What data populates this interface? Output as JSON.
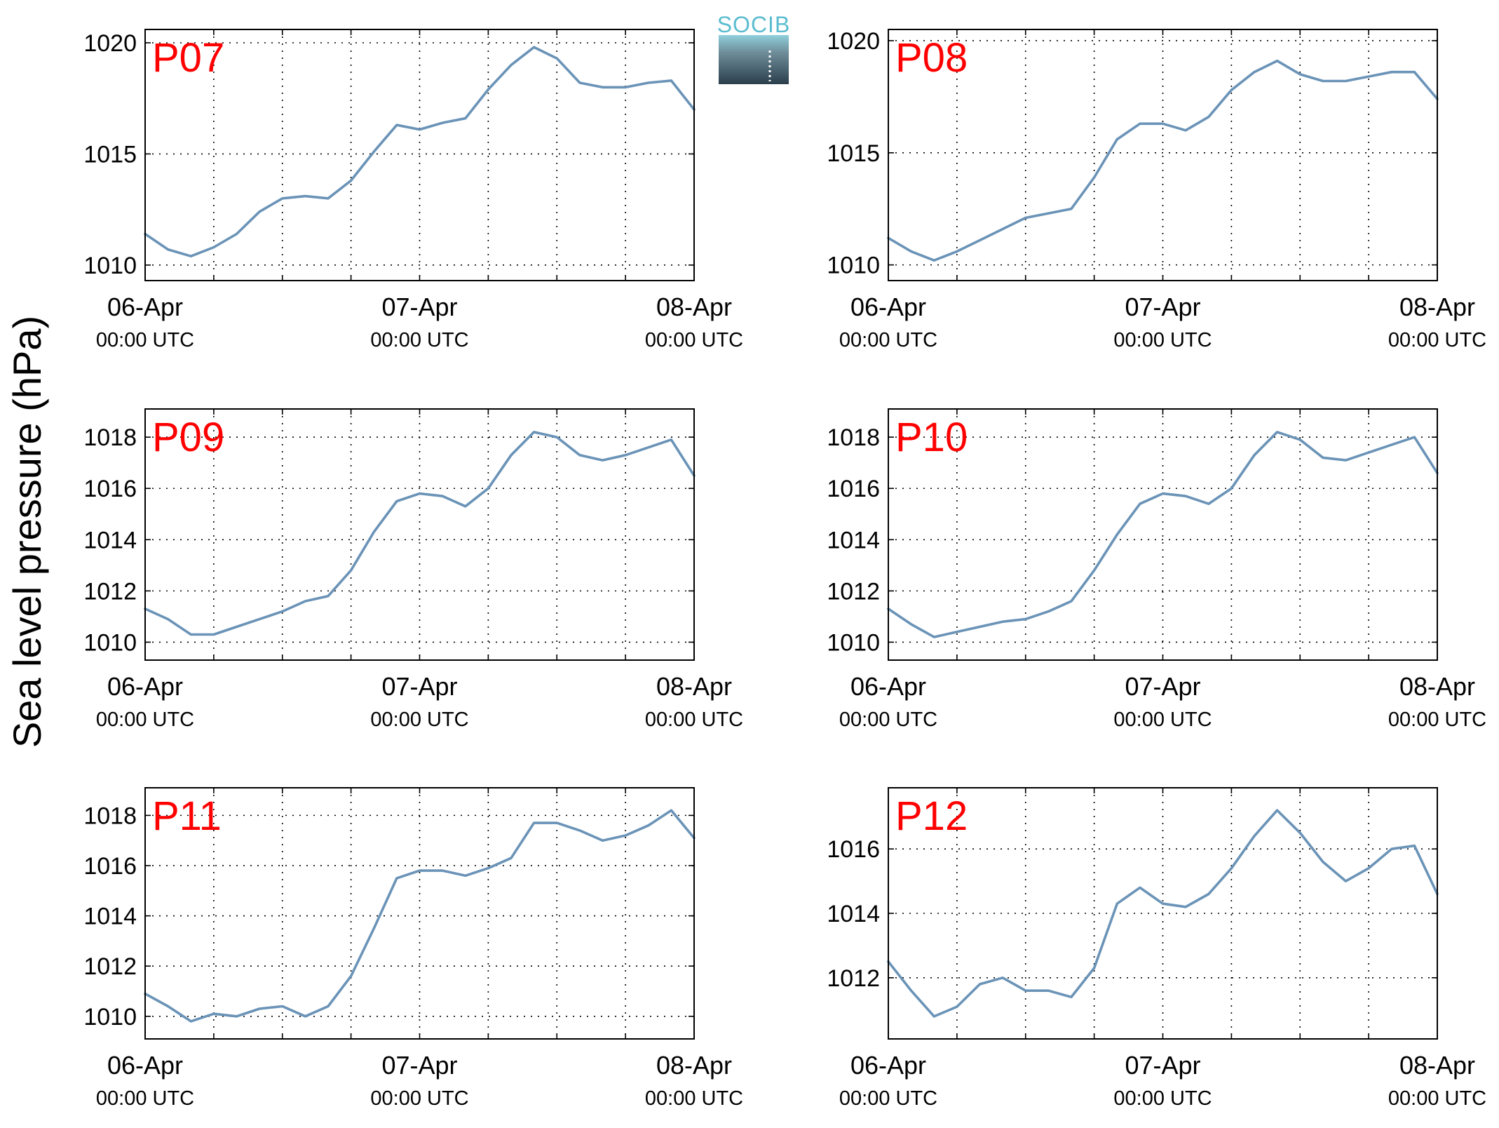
{
  "figure": {
    "ylabel": "Sea level pressure (hPa)",
    "logo_text": "SOCIB",
    "line_color": "#6a93b7",
    "title_color": "#ff0000",
    "logo_color": "#5bbccf"
  },
  "chart_data": [
    {
      "type": "line",
      "title": "P07",
      "grid": true,
      "xlim": [
        "2024-04-06 00:00",
        "2024-04-08 00:00"
      ],
      "x_ticks": [
        {
          "date": "06-Apr",
          "time": "00:00 UTC"
        },
        {
          "date": "07-Apr",
          "time": "00:00 UTC"
        },
        {
          "date": "08-Apr",
          "time": "00:00 UTC"
        }
      ],
      "x_hours": [
        0,
        2,
        4,
        6,
        8,
        10,
        12,
        14,
        16,
        18,
        20,
        22,
        24,
        26,
        28,
        30,
        32,
        34,
        36,
        38,
        40,
        42,
        44,
        46,
        48
      ],
      "ylim": [
        1009.3,
        1020.6
      ],
      "yticks": [
        1010,
        1015,
        1020
      ],
      "values": [
        1011.4,
        1010.7,
        1010.4,
        1010.8,
        1011.4,
        1012.4,
        1013.0,
        1013.1,
        1013.0,
        1013.8,
        1015.1,
        1016.3,
        1016.1,
        1016.4,
        1016.6,
        1017.9,
        1019.0,
        1019.8,
        1019.3,
        1018.2,
        1018.0,
        1018.0,
        1018.2,
        1018.3,
        1017.0
      ],
      "series": [
        {
          "values_ref": "values"
        }
      ]
    },
    {
      "type": "line",
      "title": "P08",
      "grid": true,
      "xlim": [
        "2024-04-06 00:00",
        "2024-04-08 00:00"
      ],
      "x_ticks": [
        {
          "date": "06-Apr",
          "time": "00:00 UTC"
        },
        {
          "date": "07-Apr",
          "time": "00:00 UTC"
        },
        {
          "date": "08-Apr",
          "time": "00:00 UTC"
        }
      ],
      "x_hours": [
        0,
        2,
        4,
        6,
        8,
        10,
        12,
        14,
        16,
        18,
        20,
        22,
        24,
        26,
        28,
        30,
        32,
        34,
        36,
        38,
        40,
        42,
        44,
        46,
        48
      ],
      "ylim": [
        1009.3,
        1020.5
      ],
      "yticks": [
        1010,
        1015,
        1020
      ],
      "values": [
        1011.2,
        1010.6,
        1010.2,
        1010.6,
        1011.1,
        1011.6,
        1012.1,
        1012.3,
        1012.5,
        1013.9,
        1015.6,
        1016.3,
        1016.3,
        1016.0,
        1016.6,
        1017.8,
        1018.6,
        1019.1,
        1018.5,
        1018.2,
        1018.2,
        1018.4,
        1018.6,
        1018.6,
        1017.4
      ],
      "series": [
        {
          "values_ref": "values"
        }
      ]
    },
    {
      "type": "line",
      "title": "P09",
      "grid": true,
      "xlim": [
        "2024-04-06 00:00",
        "2024-04-08 00:00"
      ],
      "x_ticks": [
        {
          "date": "06-Apr",
          "time": "00:00 UTC"
        },
        {
          "date": "07-Apr",
          "time": "00:00 UTC"
        },
        {
          "date": "08-Apr",
          "time": "00:00 UTC"
        }
      ],
      "x_hours": [
        0,
        2,
        4,
        6,
        8,
        10,
        12,
        14,
        16,
        18,
        20,
        22,
        24,
        26,
        28,
        30,
        32,
        34,
        36,
        38,
        40,
        42,
        44,
        46,
        48
      ],
      "ylim": [
        1009.3,
        1019.1
      ],
      "yticks": [
        1010,
        1012,
        1014,
        1016,
        1018
      ],
      "values": [
        1011.3,
        1010.9,
        1010.3,
        1010.3,
        1010.6,
        1010.9,
        1011.2,
        1011.6,
        1011.8,
        1012.8,
        1014.3,
        1015.5,
        1015.8,
        1015.7,
        1015.3,
        1016.0,
        1017.3,
        1018.2,
        1018.0,
        1017.3,
        1017.1,
        1017.3,
        1017.6,
        1017.9,
        1016.5
      ],
      "series": [
        {
          "values_ref": "values"
        }
      ]
    },
    {
      "type": "line",
      "title": "P10",
      "grid": true,
      "xlim": [
        "2024-04-06 00:00",
        "2024-04-08 00:00"
      ],
      "x_ticks": [
        {
          "date": "06-Apr",
          "time": "00:00 UTC"
        },
        {
          "date": "07-Apr",
          "time": "00:00 UTC"
        },
        {
          "date": "08-Apr",
          "time": "00:00 UTC"
        }
      ],
      "x_hours": [
        0,
        2,
        4,
        6,
        8,
        10,
        12,
        14,
        16,
        18,
        20,
        22,
        24,
        26,
        28,
        30,
        32,
        34,
        36,
        38,
        40,
        42,
        44,
        46,
        48
      ],
      "ylim": [
        1009.3,
        1019.1
      ],
      "yticks": [
        1010,
        1012,
        1014,
        1016,
        1018
      ],
      "values": [
        1011.3,
        1010.7,
        1010.2,
        1010.4,
        1010.6,
        1010.8,
        1010.9,
        1011.2,
        1011.6,
        1012.8,
        1014.2,
        1015.4,
        1015.8,
        1015.7,
        1015.4,
        1016.0,
        1017.3,
        1018.2,
        1017.9,
        1017.2,
        1017.1,
        1017.4,
        1017.7,
        1018.0,
        1016.6
      ],
      "series": [
        {
          "values_ref": "values"
        }
      ]
    },
    {
      "type": "line",
      "title": "P11",
      "grid": true,
      "xlim": [
        "2024-04-06 00:00",
        "2024-04-08 00:00"
      ],
      "x_ticks": [
        {
          "date": "06-Apr",
          "time": "00:00 UTC"
        },
        {
          "date": "07-Apr",
          "time": "00:00 UTC"
        },
        {
          "date": "08-Apr",
          "time": "00:00 UTC"
        }
      ],
      "x_hours": [
        0,
        2,
        4,
        6,
        8,
        10,
        12,
        14,
        16,
        18,
        20,
        22,
        24,
        26,
        28,
        30,
        32,
        34,
        36,
        38,
        40,
        42,
        44,
        46,
        48
      ],
      "ylim": [
        1009.1,
        1019.1
      ],
      "yticks": [
        1010,
        1012,
        1014,
        1016,
        1018
      ],
      "values": [
        1010.9,
        1010.4,
        1009.8,
        1010.1,
        1010.0,
        1010.3,
        1010.4,
        1010.0,
        1010.4,
        1011.6,
        1013.5,
        1015.5,
        1015.8,
        1015.8,
        1015.6,
        1015.9,
        1016.3,
        1017.7,
        1017.7,
        1017.4,
        1017.0,
        1017.2,
        1017.6,
        1018.2,
        1017.1
      ],
      "series": [
        {
          "values_ref": "values"
        }
      ]
    },
    {
      "type": "line",
      "title": "P12",
      "grid": true,
      "xlim": [
        "2024-04-06 00:00",
        "2024-04-08 00:00"
      ],
      "x_ticks": [
        {
          "date": "06-Apr",
          "time": "00:00 UTC"
        },
        {
          "date": "07-Apr",
          "time": "00:00 UTC"
        },
        {
          "date": "08-Apr",
          "time": "00:00 UTC"
        }
      ],
      "x_hours": [
        0,
        2,
        4,
        6,
        8,
        10,
        12,
        14,
        16,
        18,
        20,
        22,
        24,
        26,
        28,
        30,
        32,
        34,
        36,
        38,
        40,
        42,
        44,
        46,
        48
      ],
      "ylim": [
        1010.1,
        1017.9
      ],
      "yticks": [
        1012,
        1014,
        1016
      ],
      "values": [
        1012.5,
        1011.6,
        1010.8,
        1011.1,
        1011.8,
        1012.0,
        1011.6,
        1011.6,
        1011.4,
        1012.3,
        1014.3,
        1014.8,
        1014.3,
        1014.2,
        1014.6,
        1015.4,
        1016.4,
        1017.2,
        1016.5,
        1015.6,
        1015.0,
        1015.4,
        1016.0,
        1016.1,
        1014.6
      ],
      "series": [
        {
          "values_ref": "values"
        }
      ]
    }
  ]
}
